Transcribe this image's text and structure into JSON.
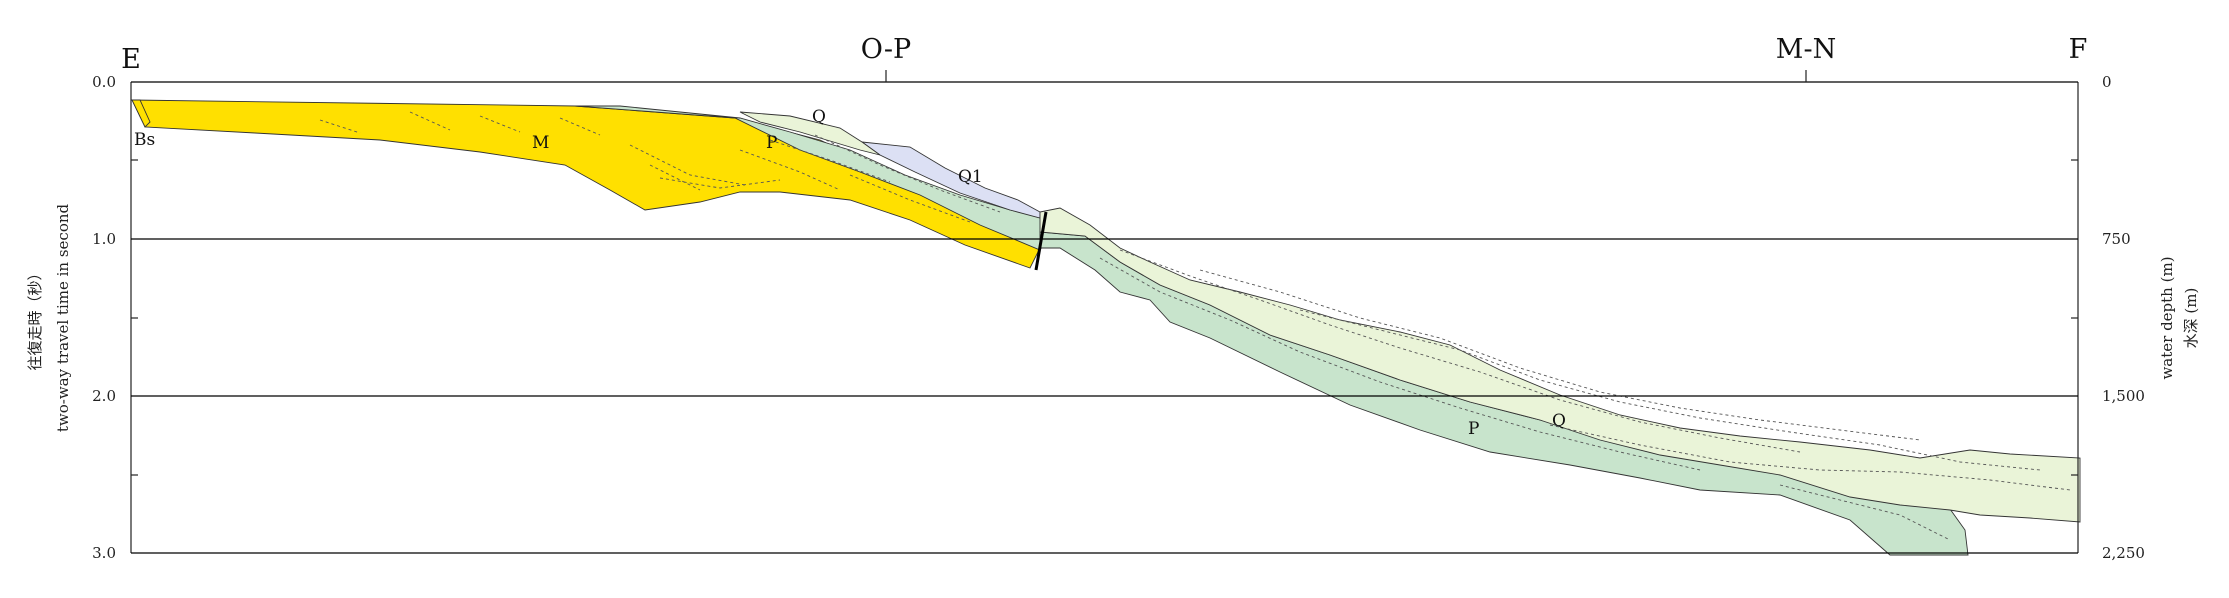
{
  "stations": {
    "left": "E",
    "right": "F",
    "crossing_1": "O-P",
    "crossing_2": "M-N"
  },
  "left_axis": {
    "title_jp": "往復走時（秒）",
    "title_en": "two-way travel time in second",
    "ticks": [
      "0.0",
      "1.0",
      "2.0",
      "3.0"
    ]
  },
  "right_axis": {
    "title_en": "water depth (m)",
    "title_jp": "水深 (m)",
    "ticks": [
      "0",
      "750",
      "1,500",
      "2,250"
    ]
  },
  "unit_labels": {
    "bs": "Bs",
    "m": "M",
    "p_upper": "P",
    "q_upper": "Q",
    "q1": "Q1",
    "p_lower": "P",
    "q_lower": "Q"
  },
  "colors": {
    "M": "#FFE000",
    "P": "#C8E4CC",
    "Q": "#EAF4D8",
    "Q1": "#DCE0F4"
  }
}
